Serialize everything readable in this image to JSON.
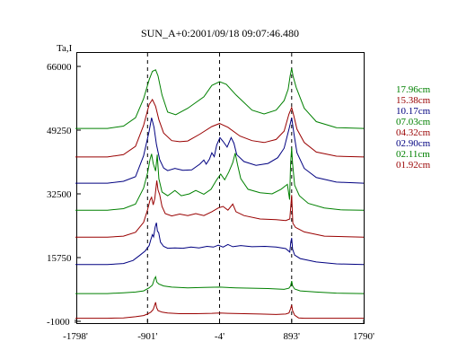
{
  "chart_data": {
    "type": "line",
    "title": "SUN_A+0:2001/09/18 09:07:46.480",
    "ylabel": "Ta,I",
    "xlim": [
      -1798,
      1790
    ],
    "ylim": [
      -1000,
      66000
    ],
    "x_ticks": [
      {
        "value": -1798,
        "label": "-1798'"
      },
      {
        "value": -901,
        "label": "-901'"
      },
      {
        "value": -4,
        "label": "-4'"
      },
      {
        "value": 893,
        "label": "893'"
      },
      {
        "value": 1790,
        "label": "1790'"
      }
    ],
    "y_ticks": [
      {
        "value": 66000,
        "label": "66000"
      },
      {
        "value": 49250,
        "label": "49250"
      },
      {
        "value": 32500,
        "label": "32500"
      },
      {
        "value": 15750,
        "label": "15750"
      },
      {
        "value": -1000,
        "label": "-1000"
      }
    ],
    "vertical_reference_lines": [
      -901,
      -4,
      893
    ],
    "grid": false,
    "legend_position": "right",
    "series": [
      {
        "name": "17.96cm",
        "color": "#008000",
        "points": [
          [
            -1798,
            49700
          ],
          [
            -1400,
            49700
          ],
          [
            -1200,
            50300
          ],
          [
            -1050,
            52500
          ],
          [
            -950,
            57500
          ],
          [
            -880,
            62500
          ],
          [
            -840,
            64700
          ],
          [
            -800,
            65100
          ],
          [
            -770,
            63500
          ],
          [
            -720,
            58500
          ],
          [
            -650,
            54000
          ],
          [
            -550,
            53300
          ],
          [
            -400,
            55000
          ],
          [
            -200,
            58000
          ],
          [
            -100,
            61000
          ],
          [
            -4,
            62000
          ],
          [
            80,
            61300
          ],
          [
            200,
            58500
          ],
          [
            400,
            54500
          ],
          [
            550,
            53500
          ],
          [
            700,
            54500
          ],
          [
            800,
            57000
          ],
          [
            850,
            60000
          ],
          [
            875,
            63500
          ],
          [
            893,
            65500
          ],
          [
            910,
            63500
          ],
          [
            950,
            60500
          ],
          [
            1050,
            55000
          ],
          [
            1200,
            51500
          ],
          [
            1450,
            49900
          ],
          [
            1790,
            49700
          ]
        ]
      },
      {
        "name": "15.38cm",
        "color": "#990000",
        "points": [
          [
            -1798,
            42200
          ],
          [
            -1400,
            42200
          ],
          [
            -1200,
            42800
          ],
          [
            -1050,
            45000
          ],
          [
            -950,
            50500
          ],
          [
            -880,
            56000
          ],
          [
            -840,
            57300
          ],
          [
            -800,
            55500
          ],
          [
            -760,
            52000
          ],
          [
            -700,
            48500
          ],
          [
            -600,
            46500
          ],
          [
            -500,
            46200
          ],
          [
            -400,
            46400
          ],
          [
            -250,
            48200
          ],
          [
            -100,
            50200
          ],
          [
            -4,
            51000
          ],
          [
            100,
            50000
          ],
          [
            250,
            47700
          ],
          [
            400,
            46500
          ],
          [
            550,
            46000
          ],
          [
            700,
            46800
          ],
          [
            800,
            49000
          ],
          [
            860,
            53500
          ],
          [
            893,
            55200
          ],
          [
            920,
            53000
          ],
          [
            960,
            49500
          ],
          [
            1050,
            46000
          ],
          [
            1200,
            43500
          ],
          [
            1450,
            42400
          ],
          [
            1790,
            42200
          ]
        ]
      },
      {
        "name": "10.17cm",
        "color": "#000080",
        "points": [
          [
            -1798,
            35300
          ],
          [
            -1400,
            35300
          ],
          [
            -1200,
            35800
          ],
          [
            -1050,
            37000
          ],
          [
            -950,
            42500
          ],
          [
            -880,
            49000
          ],
          [
            -850,
            52500
          ],
          [
            -820,
            50000
          ],
          [
            -790,
            45500
          ],
          [
            -750,
            41500
          ],
          [
            -700,
            39300
          ],
          [
            -650,
            38600
          ],
          [
            -560,
            39200
          ],
          [
            -460,
            38700
          ],
          [
            -350,
            38800
          ],
          [
            -250,
            40300
          ],
          [
            -200,
            41400
          ],
          [
            -170,
            40300
          ],
          [
            -130,
            41600
          ],
          [
            -100,
            43300
          ],
          [
            -70,
            42300
          ],
          [
            -40,
            45300
          ],
          [
            0,
            47300
          ],
          [
            40,
            46300
          ],
          [
            90,
            44800
          ],
          [
            140,
            47300
          ],
          [
            175,
            45800
          ],
          [
            210,
            42800
          ],
          [
            300,
            41000
          ],
          [
            450,
            40000
          ],
          [
            600,
            40500
          ],
          [
            720,
            42000
          ],
          [
            800,
            44500
          ],
          [
            860,
            49500
          ],
          [
            893,
            52500
          ],
          [
            920,
            48500
          ],
          [
            960,
            43300
          ],
          [
            1050,
            39200
          ],
          [
            1200,
            36800
          ],
          [
            1450,
            35600
          ],
          [
            1790,
            35300
          ]
        ]
      },
      {
        "name": "07.03cm",
        "color": "#008000",
        "points": [
          [
            -1798,
            28200
          ],
          [
            -1400,
            28200
          ],
          [
            -1200,
            28600
          ],
          [
            -1050,
            29800
          ],
          [
            -950,
            34000
          ],
          [
            -900,
            38000
          ],
          [
            -870,
            41500
          ],
          [
            -850,
            43000
          ],
          [
            -830,
            40500
          ],
          [
            -800,
            38500
          ],
          [
            -780,
            42800
          ],
          [
            -760,
            36500
          ],
          [
            -720,
            33000
          ],
          [
            -650,
            32000
          ],
          [
            -560,
            33400
          ],
          [
            -480,
            32000
          ],
          [
            -380,
            32500
          ],
          [
            -300,
            33400
          ],
          [
            -200,
            32400
          ],
          [
            -110,
            33700
          ],
          [
            -40,
            36200
          ],
          [
            10,
            37700
          ],
          [
            60,
            36200
          ],
          [
            110,
            38200
          ],
          [
            160,
            40700
          ],
          [
            190,
            43200
          ],
          [
            220,
            40200
          ],
          [
            260,
            36500
          ],
          [
            350,
            33700
          ],
          [
            500,
            32800
          ],
          [
            650,
            32500
          ],
          [
            760,
            33700
          ],
          [
            840,
            35000
          ],
          [
            868,
            31000
          ],
          [
            880,
            40500
          ],
          [
            893,
            44600
          ],
          [
            905,
            40500
          ],
          [
            930,
            34800
          ],
          [
            990,
            32000
          ],
          [
            1100,
            30000
          ],
          [
            1300,
            28800
          ],
          [
            1500,
            28300
          ],
          [
            1790,
            28200
          ]
        ]
      },
      {
        "name": "04.32cm",
        "color": "#990000",
        "points": [
          [
            -1798,
            21100
          ],
          [
            -1400,
            21100
          ],
          [
            -1200,
            21400
          ],
          [
            -1050,
            22400
          ],
          [
            -950,
            25000
          ],
          [
            -900,
            28300
          ],
          [
            -870,
            30800
          ],
          [
            -850,
            31600
          ],
          [
            -830,
            29600
          ],
          [
            -810,
            31300
          ],
          [
            -785,
            36000
          ],
          [
            -770,
            33500
          ],
          [
            -750,
            32300
          ],
          [
            -720,
            29200
          ],
          [
            -680,
            27300
          ],
          [
            -600,
            26700
          ],
          [
            -500,
            27200
          ],
          [
            -400,
            26800
          ],
          [
            -300,
            27300
          ],
          [
            -200,
            26800
          ],
          [
            -100,
            27800
          ],
          [
            -20,
            28800
          ],
          [
            40,
            29200
          ],
          [
            100,
            28200
          ],
          [
            160,
            29800
          ],
          [
            200,
            27800
          ],
          [
            300,
            26800
          ],
          [
            500,
            25900
          ],
          [
            700,
            25700
          ],
          [
            820,
            25500
          ],
          [
            870,
            25900
          ],
          [
            893,
            32200
          ],
          [
            908,
            24800
          ],
          [
            940,
            23700
          ],
          [
            1050,
            22500
          ],
          [
            1300,
            21400
          ],
          [
            1790,
            21100
          ]
        ]
      },
      {
        "name": "02.90cm",
        "color": "#000080",
        "points": [
          [
            -1798,
            13900
          ],
          [
            -1400,
            13900
          ],
          [
            -1200,
            14200
          ],
          [
            -1080,
            15000
          ],
          [
            -1000,
            16300
          ],
          [
            -930,
            17500
          ],
          [
            -880,
            18900
          ],
          [
            -860,
            20400
          ],
          [
            -840,
            21800
          ],
          [
            -825,
            21200
          ],
          [
            -805,
            23800
          ],
          [
            -790,
            24900
          ],
          [
            -778,
            22700
          ],
          [
            -762,
            22300
          ],
          [
            -740,
            19800
          ],
          [
            -700,
            18700
          ],
          [
            -650,
            18200
          ],
          [
            -560,
            18300
          ],
          [
            -460,
            18200
          ],
          [
            -360,
            18500
          ],
          [
            -260,
            18300
          ],
          [
            -160,
            18700
          ],
          [
            -80,
            18500
          ],
          [
            -20,
            19000
          ],
          [
            40,
            18500
          ],
          [
            100,
            19200
          ],
          [
            160,
            18600
          ],
          [
            260,
            18900
          ],
          [
            400,
            18600
          ],
          [
            560,
            18700
          ],
          [
            700,
            18500
          ],
          [
            820,
            18100
          ],
          [
            870,
            17200
          ],
          [
            882,
            19800
          ],
          [
            893,
            20900
          ],
          [
            905,
            18000
          ],
          [
            930,
            16400
          ],
          [
            1000,
            15500
          ],
          [
            1200,
            14600
          ],
          [
            1450,
            14100
          ],
          [
            1790,
            13900
          ]
        ]
      },
      {
        "name": "02.11cm",
        "color": "#008000",
        "points": [
          [
            -1798,
            6300
          ],
          [
            -1400,
            6300
          ],
          [
            -1200,
            6500
          ],
          [
            -1050,
            6700
          ],
          [
            -950,
            7000
          ],
          [
            -880,
            7800
          ],
          [
            -840,
            8500
          ],
          [
            -815,
            10100
          ],
          [
            -800,
            10700
          ],
          [
            -785,
            9300
          ],
          [
            -760,
            8800
          ],
          [
            -700,
            8300
          ],
          [
            -600,
            8000
          ],
          [
            -400,
            7800
          ],
          [
            -200,
            7900
          ],
          [
            -4,
            8000
          ],
          [
            200,
            7800
          ],
          [
            400,
            7700
          ],
          [
            600,
            7600
          ],
          [
            800,
            7400
          ],
          [
            860,
            7700
          ],
          [
            880,
            8300
          ],
          [
            893,
            9600
          ],
          [
            906,
            8300
          ],
          [
            930,
            7500
          ],
          [
            1000,
            7000
          ],
          [
            1200,
            6700
          ],
          [
            1450,
            6400
          ],
          [
            1790,
            6300
          ]
        ]
      },
      {
        "name": "01.92cm",
        "color": "#990000",
        "points": [
          [
            -1798,
            -200
          ],
          [
            -1400,
            -200
          ],
          [
            -1200,
            -100
          ],
          [
            -1050,
            200
          ],
          [
            -950,
            500
          ],
          [
            -900,
            900
          ],
          [
            -860,
            1400
          ],
          [
            -830,
            2100
          ],
          [
            -812,
            3200
          ],
          [
            -800,
            4000
          ],
          [
            -788,
            2600
          ],
          [
            -770,
            1800
          ],
          [
            -720,
            1400
          ],
          [
            -650,
            1200
          ],
          [
            -500,
            1000
          ],
          [
            -300,
            1000
          ],
          [
            -100,
            1100
          ],
          [
            -4,
            1200
          ],
          [
            100,
            1100
          ],
          [
            300,
            1000
          ],
          [
            500,
            900
          ],
          [
            700,
            800
          ],
          [
            820,
            900
          ],
          [
            860,
            1200
          ],
          [
            880,
            2300
          ],
          [
            893,
            3300
          ],
          [
            905,
            1800
          ],
          [
            930,
            600
          ],
          [
            980,
            -100
          ],
          [
            1050,
            -200
          ],
          [
            1200,
            -200
          ],
          [
            1790,
            -200
          ]
        ]
      }
    ]
  }
}
